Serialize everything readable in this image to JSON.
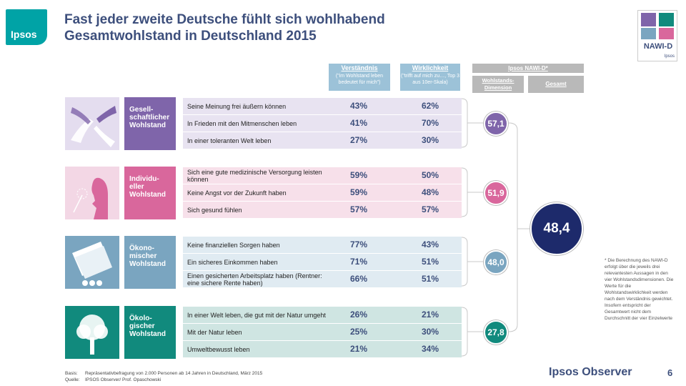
{
  "logo": "Ipsos",
  "title_line1": "Fast jeder zweite Deutsche fühlt sich wohlhabend",
  "title_line2": "Gesamtwohlstand in Deutschland 2015",
  "nawi": {
    "label": "NAWI-D",
    "sub": "Ipsos"
  },
  "columns": {
    "verstaendnis_title": "Verständnis",
    "verstaendnis_sub": "(\"im Wohlstand leben bedeutet für mich\")",
    "wirklichkeit_title": "Wirklichkeit",
    "wirklichkeit_sub": "(\"trifft auf mich zu…, Top 3 aus 10er-Skala)",
    "ipsos_header": "Ipsos NAWI-D*",
    "dimension_header": "Wohlstands-Dimension",
    "gesamt_header": "Gesamt"
  },
  "sections": [
    {
      "category": "Gesell-\nschaftlicher\nWohlstand",
      "color": "#7f65aa",
      "light": "#e8e3f1",
      "score": "57,1",
      "rows": [
        {
          "text": "Seine Meinung frei äußern können",
          "v1": "43%",
          "v2": "62%"
        },
        {
          "text": "In Frieden mit den Mitmenschen leben",
          "v1": "41%",
          "v2": "70%"
        },
        {
          "text": "In einer toleranten Welt leben",
          "v1": "27%",
          "v2": "30%"
        }
      ]
    },
    {
      "category": "Individu-\neller\nWohlstand",
      "color": "#d9679c",
      "light": "#f7e0ea",
      "score": "51,9",
      "rows": [
        {
          "text": "Sich eine gute medizinische Versorgung leisten können",
          "v1": "59%",
          "v2": "50%"
        },
        {
          "text": "Keine Angst vor der Zukunft haben",
          "v1": "59%",
          "v2": "48%"
        },
        {
          "text": "Sich gesund fühlen",
          "v1": "57%",
          "v2": "57%"
        }
      ]
    },
    {
      "category": "Ökono-\nmischer\nWohlstand",
      "color": "#7aa5c0",
      "light": "#e0ebf2",
      "score": "48,0",
      "rows": [
        {
          "text": "Keine finanziellen Sorgen haben",
          "v1": "77%",
          "v2": "43%"
        },
        {
          "text": "Ein sicheres Einkommen haben",
          "v1": "71%",
          "v2": "51%"
        },
        {
          "text": "Einen gesicherten Arbeitsplatz haben (Rentner: eine sichere Rente haben)",
          "v1": "66%",
          "v2": "51%"
        }
      ]
    },
    {
      "category": "Ökolo-\ngischer\nWohlstand",
      "color": "#118a7d",
      "light": "#cfe5e2",
      "score": "27,8",
      "rows": [
        {
          "text": "In einer Welt leben, die gut mit der Natur umgeht",
          "v1": "26%",
          "v2": "21%"
        },
        {
          "text": "Mit der Natur leben",
          "v1": "25%",
          "v2": "30%"
        },
        {
          "text": "Umweltbewusst leben",
          "v1": "21%",
          "v2": "34%"
        }
      ]
    }
  ],
  "total": {
    "value": "48,4",
    "color": "#1d2a6b"
  },
  "note": "* Die Berechnung des NAWI-D erfolgt über die jeweils drei relevantesten Aussagen in den vier Wohlstandsdimensionen. Die Werte für die Wohlstandswirklichkeit werden nach dem Verständnis gewichtet. Insofern entspricht der Gesamtwert nicht dem Durchschnitt der vier Einzelwerte",
  "footer": {
    "basis_label": "Basis:",
    "basis": "Repräsentativbefragung von 2.000 Personen ab 14 Jahren in Deutschland, März 2015",
    "quelle_label": "Quelle:",
    "quelle": "IPSOS Observer/ Prof. Opaschowski"
  },
  "brand": "Ipsos Observer",
  "page": "6",
  "colors": {
    "header_blue": "#9cc2d8",
    "gray": "#b9b9b9",
    "navy": "#3d4f7c"
  }
}
